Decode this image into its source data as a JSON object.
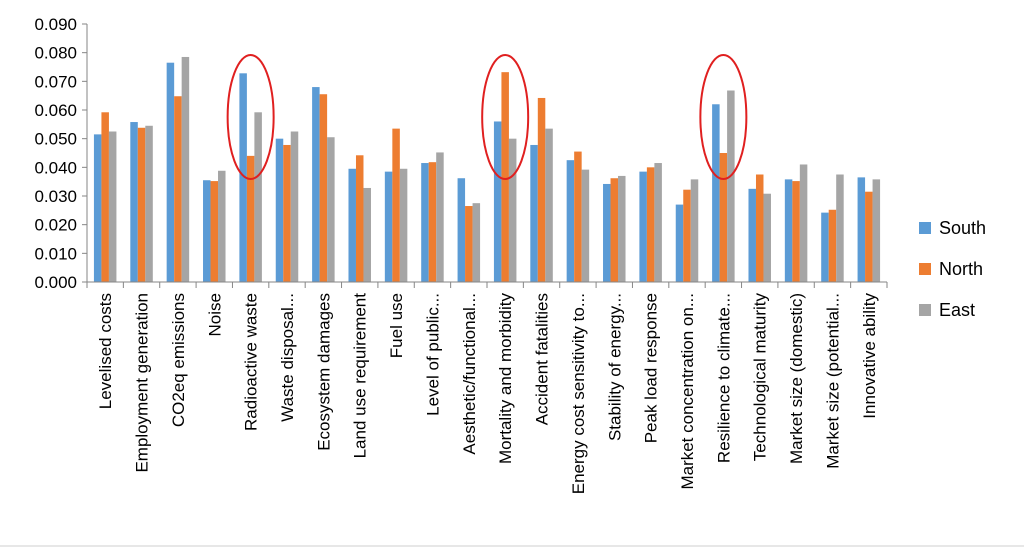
{
  "chart_data": {
    "type": "bar",
    "title": "",
    "xlabel": "",
    "ylabel": "",
    "ylim": [
      0,
      0.09
    ],
    "yticks": [
      "0.000",
      "0.010",
      "0.020",
      "0.030",
      "0.040",
      "0.050",
      "0.060",
      "0.070",
      "0.080",
      "0.090"
    ],
    "grid": false,
    "legend_position": "right",
    "categories": [
      "Levelised costs",
      "Employment generation",
      "CO2eq emissions",
      "Noise",
      "Radioactive waste",
      "Waste disposal...",
      "Ecosystem damages",
      "Land use requirement",
      "Fuel use",
      "Level of public...",
      "Aesthetic/functional...",
      "Mortality and morbidity",
      "Accident fatalities",
      "Energy cost sensitivity to...",
      "Stability of energy...",
      "Peak load response",
      "Market concentration on...",
      "Resilience to climate...",
      "Technological maturity",
      "Market size (domestic)",
      "Market size (potential...",
      "Innovative ability"
    ],
    "series": [
      {
        "name": "South",
        "color": "#5B9BD5",
        "values": [
          0.0515,
          0.0558,
          0.0765,
          0.0355,
          0.0728,
          0.05,
          0.068,
          0.0395,
          0.0385,
          0.0415,
          0.0362,
          0.056,
          0.0478,
          0.0425,
          0.0342,
          0.0385,
          0.027,
          0.062,
          0.0325,
          0.0358,
          0.0242,
          0.0365
        ]
      },
      {
        "name": "North",
        "color": "#ED7D31",
        "values": [
          0.0592,
          0.0538,
          0.0648,
          0.0352,
          0.044,
          0.0478,
          0.0655,
          0.0442,
          0.0535,
          0.0418,
          0.0265,
          0.0732,
          0.0642,
          0.0455,
          0.0362,
          0.04,
          0.0322,
          0.045,
          0.0375,
          0.0352,
          0.0252,
          0.0315
        ]
      },
      {
        "name": "East",
        "color": "#A5A5A5",
        "values": [
          0.0525,
          0.0545,
          0.0785,
          0.0388,
          0.0592,
          0.0525,
          0.0505,
          0.0328,
          0.0395,
          0.0452,
          0.0275,
          0.05,
          0.0535,
          0.0392,
          0.037,
          0.0415,
          0.0358,
          0.0668,
          0.0308,
          0.041,
          0.0375,
          0.0358
        ]
      }
    ],
    "annotations": [
      {
        "type": "circle",
        "color": "#E02020",
        "category": "Radioactive waste"
      },
      {
        "type": "circle",
        "color": "#E02020",
        "category": "Mortality and morbidity"
      },
      {
        "type": "circle",
        "color": "#E02020",
        "category": "Resilience to climate..."
      }
    ]
  }
}
